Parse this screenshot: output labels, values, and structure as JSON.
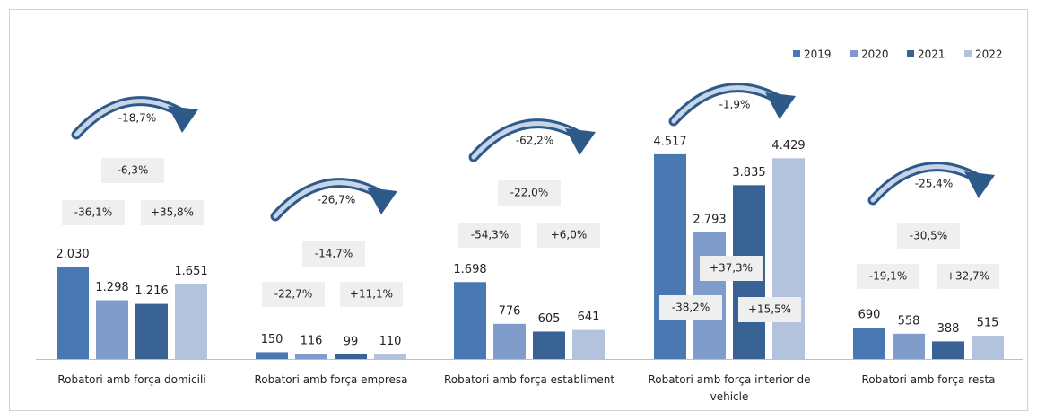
{
  "chart_data": {
    "type": "bar",
    "categories": [
      "Robatori amb força domicili",
      "Robatori amb força empresa",
      "Robatori amb força establiment",
      "Robatori amb força interior de vehicle",
      "Robatori amb força resta"
    ],
    "series": [
      {
        "name": "2019",
        "color": "#4a78b3",
        "values": [
          2030,
          150,
          1698,
          4517,
          690
        ],
        "value_labels": [
          "2.030",
          "150",
          "1.698",
          "4.517",
          "690"
        ]
      },
      {
        "name": "2020",
        "color": "#7f9ccb",
        "values": [
          1298,
          116,
          776,
          2793,
          558
        ],
        "value_labels": [
          "1.298",
          "116",
          "776",
          "2.793",
          "558"
        ]
      },
      {
        "name": "2021",
        "color": "#3a6395",
        "values": [
          1216,
          99,
          605,
          3835,
          388
        ],
        "value_labels": [
          "1.216",
          "99",
          "605",
          "3.835",
          "388"
        ]
      },
      {
        "name": "2022",
        "color": "#b3c3de",
        "values": [
          1651,
          110,
          641,
          4429,
          515
        ],
        "value_labels": [
          "1.651",
          "110",
          "641",
          "4.429",
          "515"
        ]
      }
    ],
    "annotations": [
      {
        "arrow": "-18,7%",
        "changes": [
          "-6,3%",
          "-36,1%",
          "+35,8%"
        ]
      },
      {
        "arrow": "-26,7%",
        "changes": [
          "-14,7%",
          "-22,7%",
          "+11,1%"
        ]
      },
      {
        "arrow": "-62,2%",
        "changes": [
          "-22,0%",
          "-54,3%",
          "+6,0%"
        ]
      },
      {
        "arrow": "-1,9%",
        "changes": [
          "+37,3%",
          "-38,2%",
          "+15,5%"
        ]
      },
      {
        "arrow": "-25,4%",
        "changes": [
          "-30,5%",
          "-19,1%",
          "+32,7%"
        ]
      }
    ],
    "ylim": [
      0,
      5000
    ],
    "legend": "top-right"
  }
}
